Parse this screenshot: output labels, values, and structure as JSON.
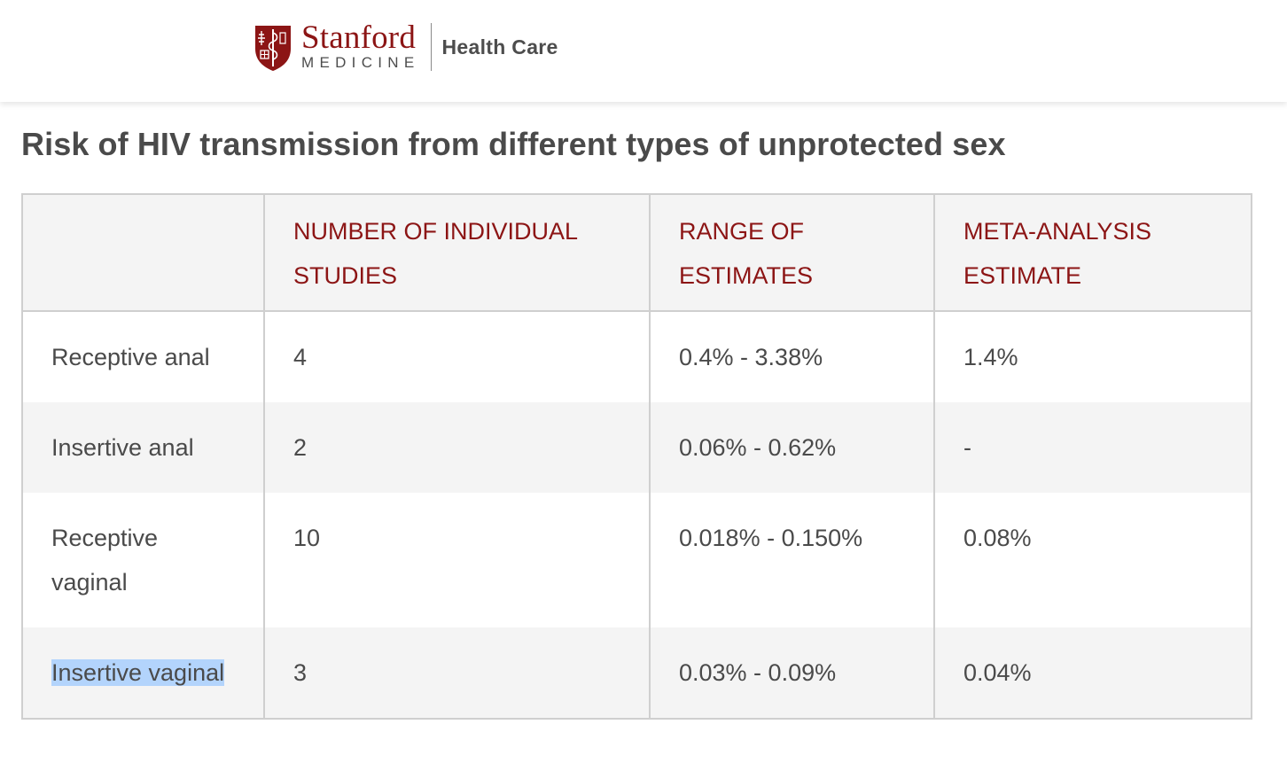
{
  "brand": {
    "stanford": "Stanford",
    "medicine": "MEDICINE",
    "health_care": "Health Care",
    "primary_color": "#8c1515",
    "logo_icon": "stanford-shield-icon"
  },
  "page": {
    "title": "Risk of HIV transmission from different types of unprotected sex"
  },
  "table": {
    "headers": [
      "",
      "NUMBER OF INDIVIDUAL STUDIES",
      "RANGE OF ESTIMATES",
      "META-ANALYSIS ESTIMATE"
    ],
    "rows": [
      {
        "type": "Receptive anal",
        "studies": "4",
        "range": "0.4% - 3.38%",
        "meta": "1.4%"
      },
      {
        "type": "Insertive anal",
        "studies": "2",
        "range": "0.06% - 0.62%",
        "meta": "-"
      },
      {
        "type": "Receptive vaginal",
        "studies": "10",
        "range": "0.018% - 0.150%",
        "meta": "0.08%"
      },
      {
        "type": "Insertive vaginal",
        "studies": "3",
        "range": "0.03% - 0.09%",
        "meta": "0.04%"
      }
    ],
    "selected_text_color": "#b3d4fc"
  }
}
